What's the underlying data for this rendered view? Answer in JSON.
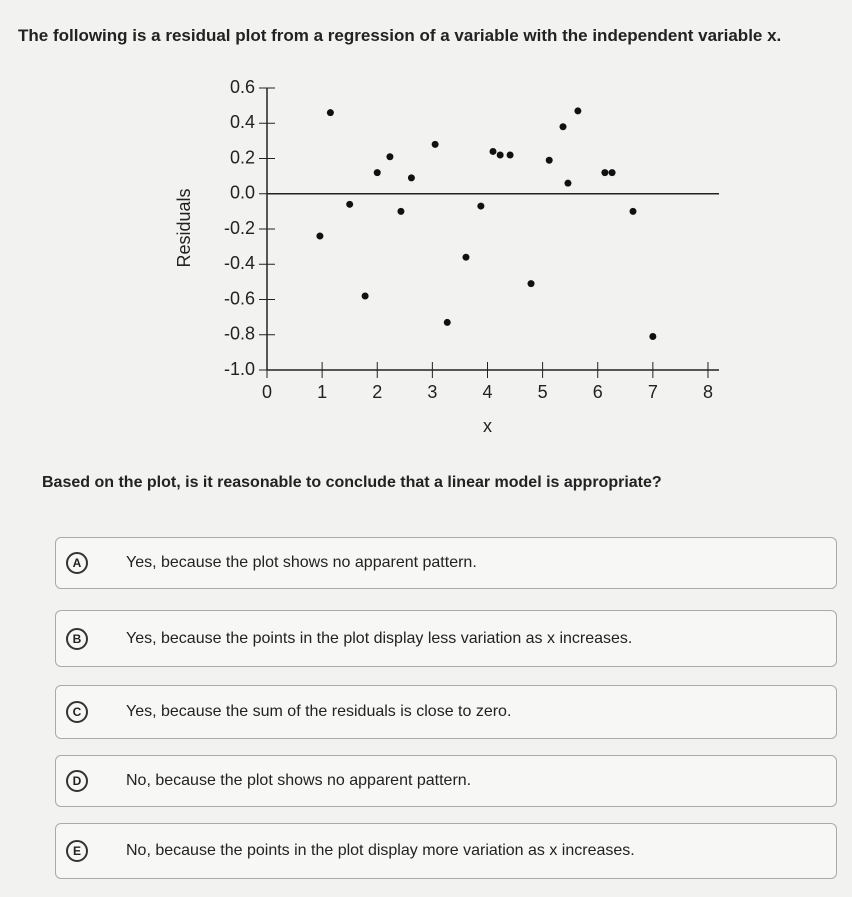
{
  "header": {
    "title": "The following is a residual plot from a regression of a variable with the independent variable x."
  },
  "chart_data": {
    "type": "scatter",
    "ylabel": "Residuals",
    "xlabel": "x",
    "color": "#111111",
    "x": [
      0.96,
      1.15,
      1.5,
      1.78,
      2.0,
      2.23,
      2.43,
      2.62,
      3.05,
      3.27,
      3.61,
      3.88,
      4.1,
      4.23,
      4.41,
      4.79,
      5.12,
      5.37,
      5.46,
      5.64,
      6.13,
      6.26,
      6.64,
      7.0
    ],
    "y": [
      -0.24,
      0.46,
      -0.06,
      -0.58,
      0.12,
      0.21,
      -0.1,
      0.09,
      0.28,
      -0.73,
      -0.36,
      -0.07,
      0.24,
      0.22,
      0.22,
      -0.51,
      0.19,
      0.38,
      0.06,
      0.47,
      0.12,
      0.12,
      -0.1,
      -0.81
    ],
    "xlim": [
      0,
      8.2
    ],
    "ylim": [
      -1.0,
      0.6
    ],
    "xticks": [
      0,
      1,
      2,
      3,
      4,
      5,
      6,
      7,
      8
    ],
    "yticks": [
      {
        "value": -1.0,
        "label": "-1.0"
      },
      -0.8,
      -0.6,
      -0.4,
      -0.2,
      {
        "value": 0.0,
        "label": "0.0"
      },
      0.2,
      0.4,
      0.6
    ],
    "reference_line": 0
  },
  "question": "Based on the plot, is it reasonable to conclude that a linear model is appropriate?",
  "options": [
    {
      "letter": "A",
      "text": "Yes, because the plot shows no apparent pattern."
    },
    {
      "letter": "B",
      "text": "Yes, because the points in the plot display less variation as x increases."
    },
    {
      "letter": "C",
      "text": "Yes, because the sum of the residuals is close to zero."
    },
    {
      "letter": "D",
      "text": "No, because the plot shows no apparent pattern."
    },
    {
      "letter": "E",
      "text": "No, because the points in the plot display more variation as x increases."
    }
  ]
}
